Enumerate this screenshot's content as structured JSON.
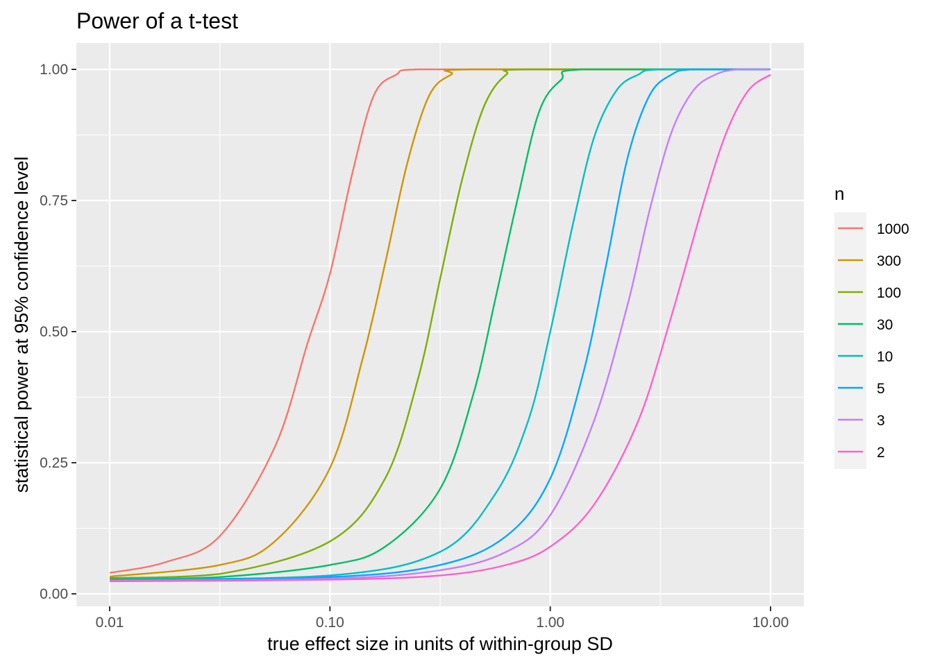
{
  "chart_data": {
    "type": "line",
    "title": "Power of a t-test",
    "xlabel": "true effect size in units of within-group SD",
    "ylabel": "statistical power at 95% confidence level",
    "x_scale": "log10",
    "xlim": [
      0.01,
      10
    ],
    "ylim": [
      0,
      1
    ],
    "x_ticks": [
      "0.01",
      "0.10",
      "1.00",
      "10.00"
    ],
    "y_ticks": [
      "0.00",
      "0.25",
      "0.50",
      "0.75",
      "1.00"
    ],
    "grid": true,
    "legend": {
      "title": "n",
      "position": "right"
    },
    "series": [
      {
        "name": "1000",
        "color": "#F8766D",
        "values": [
          [
            0.01,
            0.04
          ],
          [
            0.0178,
            0.06
          ],
          [
            0.0316,
            0.11
          ],
          [
            0.0562,
            0.28
          ],
          [
            0.0794,
            0.48
          ],
          [
            0.1,
            0.61
          ],
          [
            0.126,
            0.8
          ],
          [
            0.158,
            0.95
          ],
          [
            0.2,
            0.99
          ],
          [
            0.251,
            1.0
          ],
          [
            1,
            1.0
          ],
          [
            10,
            1.0
          ]
        ]
      },
      {
        "name": "300",
        "color": "#CD9600",
        "values": [
          [
            0.01,
            0.033
          ],
          [
            0.0316,
            0.055
          ],
          [
            0.0562,
            0.1
          ],
          [
            0.1,
            0.24
          ],
          [
            0.141,
            0.45
          ],
          [
            0.178,
            0.63
          ],
          [
            0.224,
            0.82
          ],
          [
            0.282,
            0.95
          ],
          [
            0.355,
            0.99
          ],
          [
            0.447,
            1.0
          ],
          [
            10,
            1.0
          ]
        ]
      },
      {
        "name": "100",
        "color": "#7CAE00",
        "values": [
          [
            0.01,
            0.03
          ],
          [
            0.0316,
            0.038
          ],
          [
            0.1,
            0.1
          ],
          [
            0.178,
            0.22
          ],
          [
            0.251,
            0.41
          ],
          [
            0.316,
            0.6
          ],
          [
            0.398,
            0.79
          ],
          [
            0.501,
            0.93
          ],
          [
            0.631,
            0.99
          ],
          [
            0.794,
            1.0
          ],
          [
            10,
            1.0
          ]
        ]
      },
      {
        "name": "30",
        "color": "#00BE67",
        "values": [
          [
            0.01,
            0.028
          ],
          [
            0.0316,
            0.032
          ],
          [
            0.1,
            0.055
          ],
          [
            0.178,
            0.09
          ],
          [
            0.316,
            0.2
          ],
          [
            0.447,
            0.38
          ],
          [
            0.562,
            0.56
          ],
          [
            0.708,
            0.75
          ],
          [
            0.891,
            0.92
          ],
          [
            1.12,
            0.98
          ],
          [
            1.41,
            1.0
          ],
          [
            10,
            1.0
          ]
        ]
      },
      {
        "name": "10",
        "color": "#00BFC4",
        "values": [
          [
            0.01,
            0.027
          ],
          [
            0.1,
            0.035
          ],
          [
            0.316,
            0.08
          ],
          [
            0.562,
            0.19
          ],
          [
            0.794,
            0.33
          ],
          [
            1,
            0.5
          ],
          [
            1.26,
            0.7
          ],
          [
            1.58,
            0.87
          ],
          [
            2,
            0.96
          ],
          [
            2.51,
            0.99
          ],
          [
            3.16,
            1.0
          ],
          [
            10,
            1.0
          ]
        ]
      },
      {
        "name": "5",
        "color": "#00A9FF",
        "values": [
          [
            0.01,
            0.026
          ],
          [
            0.1,
            0.032
          ],
          [
            0.316,
            0.055
          ],
          [
            0.631,
            0.11
          ],
          [
            1,
            0.22
          ],
          [
            1.41,
            0.42
          ],
          [
            1.78,
            0.62
          ],
          [
            2.24,
            0.83
          ],
          [
            2.82,
            0.95
          ],
          [
            3.55,
            0.99
          ],
          [
            4.47,
            1.0
          ],
          [
            10,
            1.0
          ]
        ]
      },
      {
        "name": "3",
        "color": "#C77CFF",
        "values": [
          [
            0.01,
            0.025
          ],
          [
            0.1,
            0.029
          ],
          [
            0.316,
            0.045
          ],
          [
            0.631,
            0.08
          ],
          [
            1,
            0.15
          ],
          [
            1.58,
            0.33
          ],
          [
            2.24,
            0.55
          ],
          [
            2.82,
            0.73
          ],
          [
            3.55,
            0.88
          ],
          [
            4.47,
            0.96
          ],
          [
            5.62,
            0.99
          ],
          [
            7.08,
            1.0
          ],
          [
            10,
            1.0
          ]
        ]
      },
      {
        "name": "2",
        "color": "#FF61CC",
        "values": [
          [
            0.01,
            0.024
          ],
          [
            0.1,
            0.027
          ],
          [
            0.316,
            0.035
          ],
          [
            0.631,
            0.055
          ],
          [
            1,
            0.09
          ],
          [
            1.58,
            0.17
          ],
          [
            2.51,
            0.33
          ],
          [
            3.55,
            0.53
          ],
          [
            5,
            0.75
          ],
          [
            6.31,
            0.88
          ],
          [
            7.94,
            0.96
          ],
          [
            10,
            0.99
          ]
        ]
      }
    ]
  }
}
